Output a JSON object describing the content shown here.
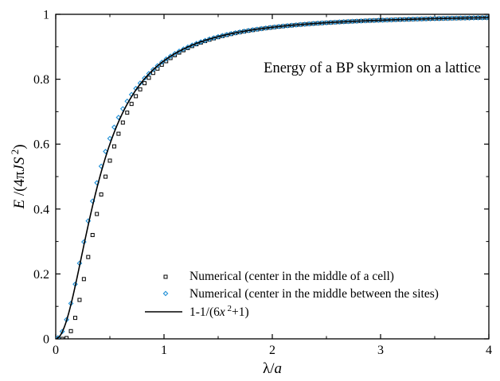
{
  "chart_data": {
    "type": "scatter",
    "title": "",
    "annotation": "Energy of a BP skyrmion on a lattice",
    "xlabel": "λ/a",
    "ylabel": "E /(4πJS 2)",
    "xlim": [
      0,
      4
    ],
    "ylim": [
      0,
      1
    ],
    "x_ticks": [
      "0",
      "1",
      "2",
      "3",
      "4"
    ],
    "y_ticks": [
      "0",
      "0.2",
      "0.4",
      "0.6",
      "0.8",
      "1"
    ],
    "grid": false,
    "legend_position": "bottom-right",
    "series": [
      {
        "name": "Numerical (center in the middle of a cell)",
        "marker": "open-square",
        "color": "#000000",
        "x_start": 0.02,
        "x_step": 0.04,
        "count": 100,
        "shift": 0.08,
        "model": "y = 1 - 1/(6*(x-shift)^2 + 1) for x > shift, else ~0"
      },
      {
        "name": "Numerical (center in the middle between the sites)",
        "marker": "open-diamond",
        "color": "#1f8fd6",
        "x_start": 0.02,
        "x_step": 0.04,
        "count": 100,
        "shift": 0.0,
        "model": "y = 1 - 1/(6*x^2 + 1) with small lattice correction near x≈0.2-0.6"
      },
      {
        "name": "1-1/(6x 2+1)",
        "marker": "line",
        "color": "#000000",
        "formula": "1 - 1/(6*x^2 + 1)"
      }
    ],
    "sample_values": {
      "x": [
        0.0,
        0.25,
        0.5,
        0.75,
        1.0,
        1.5,
        2.0,
        3.0,
        4.0
      ],
      "curve_y": [
        0.0,
        0.273,
        0.6,
        0.771,
        0.857,
        0.931,
        0.96,
        0.982,
        0.99
      ]
    }
  },
  "legend": {
    "items": [
      "Numerical (center in the middle of a cell)",
      "Numerical (center in the middle between the sites)",
      "1-1/(6x 2+1)"
    ]
  }
}
